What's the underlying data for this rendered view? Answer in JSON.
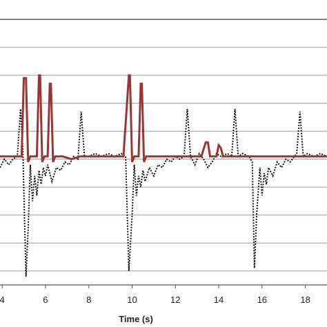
{
  "chart_data": {
    "type": "line",
    "title": "",
    "xlabel": "Time (s)",
    "ylabel": "",
    "xlim": [
      3.9,
      19.0
    ],
    "ylim": [
      -8.5,
      1.3
    ],
    "x_ticks": [
      4,
      6,
      8,
      10,
      12,
      14,
      16,
      18
    ],
    "y_gridlines": [
      -8,
      -7,
      -6,
      -5,
      -4,
      -3,
      -2,
      -1,
      0,
      1
    ],
    "grid": true,
    "legend": "none",
    "series": [
      {
        "style": "solid",
        "color": "#9b3535",
        "points": [
          [
            3.9,
            -3.9
          ],
          [
            4.9,
            -3.9
          ],
          [
            5.0,
            -1.1
          ],
          [
            5.1,
            -1.1
          ],
          [
            5.2,
            -4.1
          ],
          [
            5.3,
            -3.9
          ],
          [
            5.6,
            -3.9
          ],
          [
            5.7,
            -1.0
          ],
          [
            5.75,
            -1.0
          ],
          [
            5.85,
            -4.1
          ],
          [
            5.95,
            -3.9
          ],
          [
            6.1,
            -3.9
          ],
          [
            6.2,
            -1.3
          ],
          [
            6.25,
            -1.3
          ],
          [
            6.35,
            -4.1
          ],
          [
            6.45,
            -3.9
          ],
          [
            6.8,
            -3.9
          ],
          [
            7.2,
            -4.0
          ],
          [
            7.6,
            -3.9
          ],
          [
            8.2,
            -3.9
          ],
          [
            8.8,
            -3.9
          ],
          [
            9.6,
            -3.9
          ],
          [
            9.85,
            -1.0
          ],
          [
            9.9,
            -1.0
          ],
          [
            10.0,
            -4.1
          ],
          [
            10.1,
            -3.9
          ],
          [
            10.3,
            -3.9
          ],
          [
            10.4,
            -1.3
          ],
          [
            10.45,
            -1.3
          ],
          [
            10.55,
            -4.1
          ],
          [
            10.65,
            -3.9
          ],
          [
            11.0,
            -3.9
          ],
          [
            11.6,
            -3.9
          ],
          [
            12.2,
            -3.9
          ],
          [
            12.8,
            -3.9
          ],
          [
            13.2,
            -3.9
          ],
          [
            13.4,
            -3.4
          ],
          [
            13.5,
            -3.4
          ],
          [
            13.6,
            -3.9
          ],
          [
            13.9,
            -3.9
          ],
          [
            14.0,
            -3.5
          ],
          [
            14.1,
            -3.6
          ],
          [
            14.2,
            -3.9
          ],
          [
            14.8,
            -3.9
          ],
          [
            15.6,
            -3.9
          ],
          [
            16.4,
            -3.9
          ],
          [
            17.2,
            -3.9
          ],
          [
            18.0,
            -3.9
          ],
          [
            19.0,
            -3.9
          ]
        ]
      },
      {
        "style": "dotted",
        "color": "#111111",
        "points": [
          [
            3.9,
            -4.3
          ],
          [
            4.1,
            -4.0
          ],
          [
            4.3,
            -4.2
          ],
          [
            4.5,
            -4.0
          ],
          [
            4.7,
            -3.9
          ],
          [
            4.85,
            -2.2
          ],
          [
            4.95,
            -3.6
          ],
          [
            5.1,
            -8.2
          ],
          [
            5.2,
            -6.5
          ],
          [
            5.3,
            -4.2
          ],
          [
            5.4,
            -5.5
          ],
          [
            5.5,
            -4.6
          ],
          [
            5.6,
            -5.3
          ],
          [
            5.7,
            -4.4
          ],
          [
            5.8,
            -4.9
          ],
          [
            5.9,
            -4.3
          ],
          [
            6.0,
            -4.6
          ],
          [
            6.1,
            -4.2
          ],
          [
            6.3,
            -4.8
          ],
          [
            6.5,
            -4.3
          ],
          [
            6.7,
            -4.4
          ],
          [
            6.9,
            -4.1
          ],
          [
            7.1,
            -4.2
          ],
          [
            7.3,
            -3.9
          ],
          [
            7.5,
            -4.0
          ],
          [
            7.65,
            -2.3
          ],
          [
            7.8,
            -3.9
          ],
          [
            8.0,
            -3.9
          ],
          [
            8.3,
            -3.8
          ],
          [
            8.6,
            -3.9
          ],
          [
            8.9,
            -3.8
          ],
          [
            9.2,
            -3.9
          ],
          [
            9.5,
            -3.8
          ],
          [
            9.7,
            -3.9
          ],
          [
            9.85,
            -8.0
          ],
          [
            10.0,
            -6.0
          ],
          [
            10.1,
            -4.2
          ],
          [
            10.2,
            -5.3
          ],
          [
            10.3,
            -4.6
          ],
          [
            10.4,
            -5.0
          ],
          [
            10.5,
            -4.4
          ],
          [
            10.6,
            -4.8
          ],
          [
            10.8,
            -4.3
          ],
          [
            11.0,
            -4.6
          ],
          [
            11.2,
            -4.2
          ],
          [
            11.4,
            -4.3
          ],
          [
            11.6,
            -4.0
          ],
          [
            11.8,
            -4.1
          ],
          [
            12.0,
            -3.9
          ],
          [
            12.2,
            -4.0
          ],
          [
            12.4,
            -3.9
          ],
          [
            12.55,
            -2.2
          ],
          [
            12.7,
            -3.9
          ],
          [
            12.9,
            -4.2
          ],
          [
            13.1,
            -3.8
          ],
          [
            13.3,
            -4.0
          ],
          [
            13.5,
            -4.3
          ],
          [
            13.7,
            -4.1
          ],
          [
            13.9,
            -3.8
          ],
          [
            14.1,
            -3.9
          ],
          [
            14.4,
            -3.8
          ],
          [
            14.6,
            -3.9
          ],
          [
            14.75,
            -2.2
          ],
          [
            14.9,
            -3.9
          ],
          [
            15.1,
            -3.8
          ],
          [
            15.4,
            -3.9
          ],
          [
            15.55,
            -4.1
          ],
          [
            15.65,
            -7.9
          ],
          [
            15.75,
            -6.0
          ],
          [
            15.9,
            -4.3
          ],
          [
            16.0,
            -5.3
          ],
          [
            16.1,
            -4.5
          ],
          [
            16.2,
            -4.9
          ],
          [
            16.3,
            -4.3
          ],
          [
            16.5,
            -4.6
          ],
          [
            16.7,
            -4.1
          ],
          [
            16.9,
            -4.3
          ],
          [
            17.1,
            -4.0
          ],
          [
            17.3,
            -4.1
          ],
          [
            17.5,
            -3.9
          ],
          [
            17.6,
            -3.8
          ],
          [
            17.75,
            -2.3
          ],
          [
            17.9,
            -3.9
          ],
          [
            18.1,
            -3.8
          ],
          [
            18.4,
            -3.9
          ],
          [
            18.7,
            -3.8
          ],
          [
            19.0,
            -3.9
          ]
        ]
      }
    ]
  }
}
